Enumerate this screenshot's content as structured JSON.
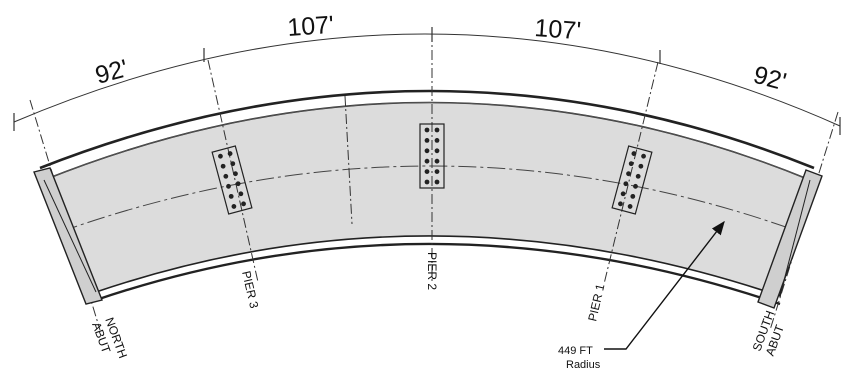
{
  "dimensions": {
    "span1": "92'",
    "span2": "107'",
    "span3": "107'",
    "span4": "92'"
  },
  "supports": {
    "north_abut_line1": "NORTH",
    "north_abut_line2": "ABUT",
    "pier3": "PIER 3",
    "pier2": "PIER 2",
    "pier1": "PIER 1",
    "south_abut_line1": "SOUTH",
    "south_abut_line2": "ABUT"
  },
  "radius_note": {
    "line1": "449 FT",
    "line2": "Radius"
  },
  "colors": {
    "deck_fill": "#dcdcdc",
    "line": "#222222"
  }
}
